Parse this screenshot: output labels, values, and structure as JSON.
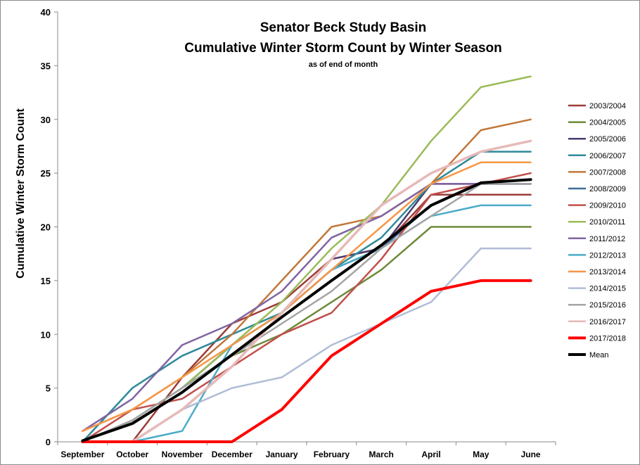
{
  "chart_data": {
    "type": "line",
    "title": "Senator Beck Study Basin",
    "subtitle": "Cumulative Winter Storm Count by Winter Season",
    "note": "as of end of month",
    "ylabel": "Cumulative Winter Storm Count",
    "xlabel": "",
    "ylim": [
      0,
      40
    ],
    "yticks": [
      0,
      5,
      10,
      15,
      20,
      25,
      30,
      35,
      40
    ],
    "grid": false,
    "legend_position": "right",
    "categories": [
      "September",
      "October",
      "November",
      "December",
      "January",
      "February",
      "March",
      "April",
      "May",
      "June"
    ],
    "series": [
      {
        "name": "2003/2004",
        "color": "#9c3c39",
        "values": [
          0,
          0,
          6,
          11,
          13,
          17,
          18,
          23,
          23,
          23
        ]
      },
      {
        "name": "2004/2005",
        "color": "#6f8a3a",
        "values": [
          0,
          2,
          5,
          8,
          10,
          13,
          16,
          20,
          20,
          20
        ]
      },
      {
        "name": "2005/2006",
        "color": "#4b3b70",
        "values": [
          0,
          2,
          5,
          9,
          12,
          17,
          18,
          24,
          24,
          24
        ]
      },
      {
        "name": "2006/2007",
        "color": "#2e8a9a",
        "values": [
          0,
          5,
          8,
          10,
          12,
          16,
          19,
          24,
          27,
          27
        ]
      },
      {
        "name": "2007/2008",
        "color": "#c1773a",
        "values": [
          1,
          3,
          6,
          10,
          15,
          20,
          21,
          24,
          29,
          30
        ]
      },
      {
        "name": "2008/2009",
        "color": "#3d6d9c",
        "values": [
          0,
          2,
          5,
          9,
          12,
          16,
          18,
          22,
          24,
          24
        ]
      },
      {
        "name": "2009/2010",
        "color": "#c0504d",
        "values": [
          0,
          3,
          4,
          7,
          10,
          12,
          17,
          23,
          24,
          25
        ]
      },
      {
        "name": "2010/2011",
        "color": "#9bbb59",
        "values": [
          0,
          2,
          5,
          9,
          13,
          18,
          22,
          28,
          33,
          34
        ]
      },
      {
        "name": "2011/2012",
        "color": "#8064a2",
        "values": [
          1,
          4,
          9,
          11,
          14,
          19,
          21,
          24,
          24,
          24
        ]
      },
      {
        "name": "2012/2013",
        "color": "#4bacc6",
        "values": [
          0,
          0,
          1,
          9,
          12,
          16,
          18,
          21,
          22,
          22
        ]
      },
      {
        "name": "2013/2014",
        "color": "#f79646",
        "values": [
          1,
          3,
          6,
          9,
          12,
          16,
          20,
          24,
          26,
          26
        ]
      },
      {
        "name": "2014/2015",
        "color": "#b0bcd6",
        "values": [
          0,
          0,
          3,
          5,
          6,
          9,
          11,
          13,
          18,
          18
        ]
      },
      {
        "name": "2015/2016",
        "color": "#a5a5a5",
        "values": [
          0,
          2,
          5,
          8,
          11,
          14,
          18,
          21,
          24,
          24
        ]
      },
      {
        "name": "2016/2017",
        "color": "#e6b9b8",
        "values": [
          0,
          0,
          3,
          7,
          12,
          17,
          22,
          25,
          27,
          28
        ]
      },
      {
        "name": "2017/2018",
        "color": "#ff0000",
        "values": [
          0,
          0,
          0,
          0,
          3,
          8,
          11,
          14,
          15,
          15
        ]
      },
      {
        "name": "Mean",
        "color": "#000000",
        "values": [
          0.1,
          1.7,
          4.6,
          8.1,
          11.6,
          15.0,
          18.3,
          22.0,
          24.1,
          24.4
        ]
      }
    ]
  }
}
